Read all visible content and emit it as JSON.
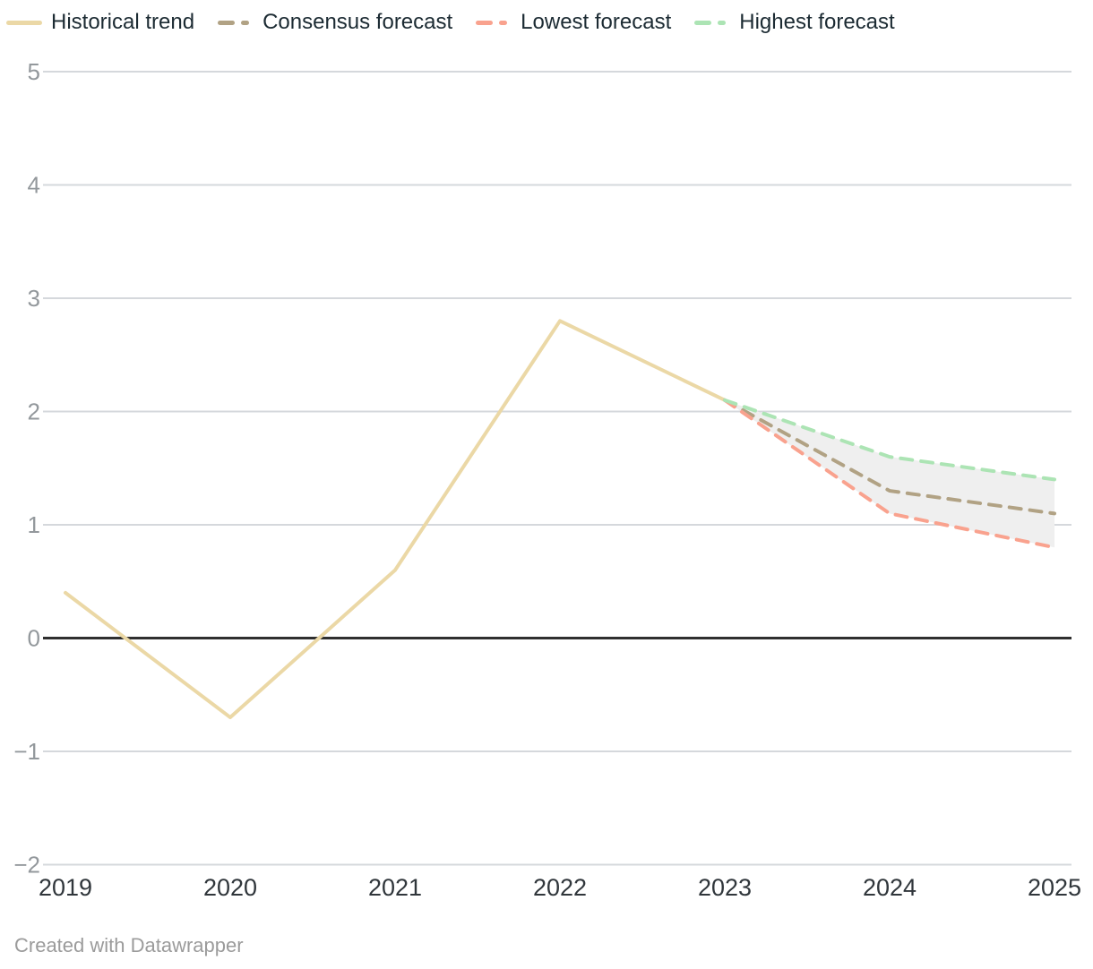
{
  "legend": {
    "items": [
      {
        "id": "historical",
        "label": "Historical trend",
        "color": "#ebd8a6",
        "style": "solid"
      },
      {
        "id": "consensus",
        "label": "Consensus forecast",
        "color": "#b1a284",
        "style": "dashed"
      },
      {
        "id": "lowest",
        "label": "Lowest forecast",
        "color": "#f9a28e",
        "style": "dashed"
      },
      {
        "id": "highest",
        "label": "Highest forecast",
        "color": "#ace4b4",
        "style": "dashed"
      }
    ]
  },
  "footer": {
    "credit": "Created with Datawrapper"
  },
  "chart_data": {
    "type": "line",
    "title": "",
    "xlabel": "",
    "ylabel": "",
    "x_range": [
      2019,
      2025
    ],
    "y_range": [
      -2,
      5
    ],
    "grid": true,
    "legend_position": "top",
    "zero_baseline": true,
    "x_ticks": [
      {
        "value": 2019,
        "label": "2019"
      },
      {
        "value": 2020,
        "label": "2020"
      },
      {
        "value": 2021,
        "label": "2021"
      },
      {
        "value": 2022,
        "label": "2022"
      },
      {
        "value": 2023,
        "label": "2023"
      },
      {
        "value": 2024,
        "label": "2024"
      },
      {
        "value": 2025,
        "label": "2025"
      }
    ],
    "y_ticks": [
      {
        "value": 5,
        "label": "5"
      },
      {
        "value": 4,
        "label": "4"
      },
      {
        "value": 3,
        "label": "3"
      },
      {
        "value": 2,
        "label": "2"
      },
      {
        "value": 1,
        "label": "1"
      },
      {
        "value": 0,
        "label": "0"
      },
      {
        "value": -1,
        "label": "−1"
      },
      {
        "value": -2,
        "label": "−2"
      }
    ],
    "series": [
      {
        "name": "Historical trend",
        "style": "solid",
        "color": "#ebd8a6",
        "points": [
          [
            2019,
            0.4
          ],
          [
            2020,
            -0.7
          ],
          [
            2021,
            0.6
          ],
          [
            2022,
            2.8
          ],
          [
            2023,
            2.1
          ]
        ]
      },
      {
        "name": "Consensus forecast",
        "style": "dashed",
        "color": "#b1a284",
        "points": [
          [
            2023,
            2.1
          ],
          [
            2024,
            1.3
          ],
          [
            2025,
            1.1
          ]
        ]
      },
      {
        "name": "Lowest forecast",
        "style": "dashed",
        "color": "#f9a28e",
        "points": [
          [
            2023,
            2.1
          ],
          [
            2024,
            1.1
          ],
          [
            2025,
            0.8
          ]
        ]
      },
      {
        "name": "Highest forecast",
        "style": "dashed",
        "color": "#ace4b4",
        "points": [
          [
            2023,
            2.1
          ],
          [
            2024,
            1.6
          ],
          [
            2025,
            1.4
          ]
        ]
      }
    ],
    "band": {
      "name": "Forecast range",
      "upper": "Highest forecast",
      "lower": "Lowest forecast",
      "color": "#efefef"
    },
    "colors": {
      "grid": "#d5d8dc",
      "zero_line": "#2f2f2f",
      "y_tick_label": "#93989c",
      "x_tick_label": "#30363b",
      "legend_text": "#1c2b33",
      "footer_text": "#9b9b9b"
    }
  }
}
